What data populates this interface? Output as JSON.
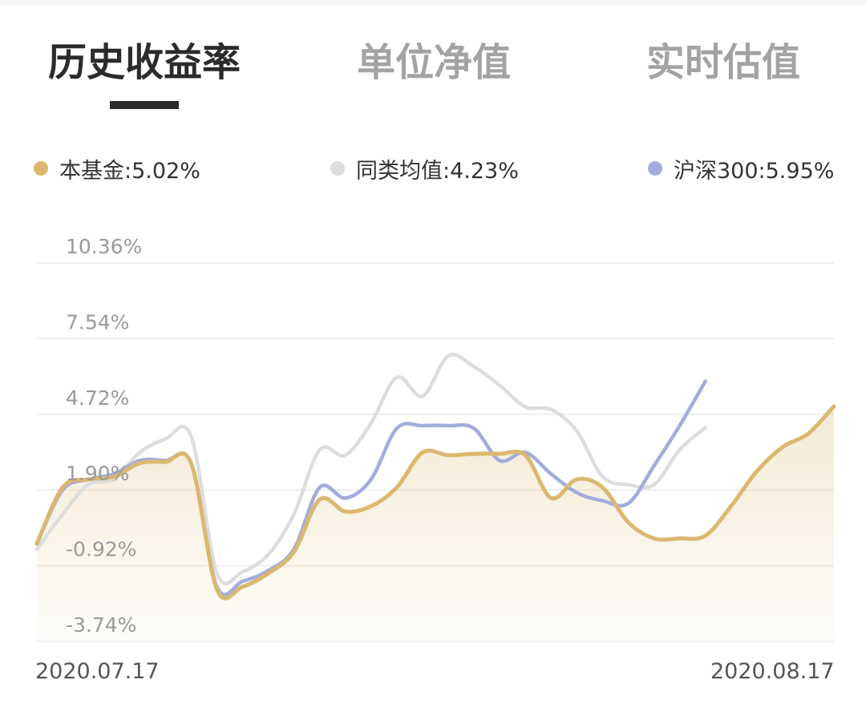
{
  "tabs": [
    {
      "label": "历史收益率",
      "active": true
    },
    {
      "label": "单位净值",
      "active": false
    },
    {
      "label": "实时估值",
      "active": false
    }
  ],
  "legend": [
    {
      "label": "本基金:5.02%",
      "color": "#dcb86f"
    },
    {
      "label": "同类均值:4.23%",
      "color": "#dddddd"
    },
    {
      "label": "沪深300:5.95%",
      "color": "#a2acdc"
    }
  ],
  "chart_data": {
    "type": "line",
    "y_tick_labels": [
      "10.36%",
      "7.54%",
      "4.72%",
      "1.90%",
      "-0.92%",
      "-3.74%"
    ],
    "y_ticks": [
      10.36,
      7.54,
      4.72,
      1.9,
      -0.92,
      -3.74
    ],
    "ylim": [
      -3.74,
      10.36
    ],
    "x_start_label": "2020.07.17",
    "x_end_label": "2020.08.17",
    "area_fill_series": "本基金",
    "series": [
      {
        "name": "本基金",
        "color": "#dcb86f",
        "x": [
          "2020.07.17",
          "2020.07.18",
          "2020.07.19",
          "2020.07.20",
          "2020.07.21",
          "2020.07.22",
          "2020.07.23",
          "2020.07.24",
          "2020.07.25",
          "2020.07.26",
          "2020.07.27",
          "2020.07.28",
          "2020.07.29",
          "2020.07.30",
          "2020.07.31",
          "2020.08.01",
          "2020.08.02",
          "2020.08.03",
          "2020.08.04",
          "2020.08.05",
          "2020.08.06",
          "2020.08.07",
          "2020.08.08",
          "2020.08.09",
          "2020.08.10",
          "2020.08.11",
          "2020.08.12",
          "2020.08.13",
          "2020.08.14",
          "2020.08.15",
          "2020.08.16",
          "2020.08.17"
        ],
        "values": [
          -0.1,
          2.0,
          2.3,
          2.4,
          2.9,
          2.95,
          2.9,
          -1.8,
          -1.7,
          -1.2,
          -0.4,
          1.55,
          1.1,
          1.3,
          2.0,
          3.3,
          3.2,
          3.25,
          3.25,
          3.2,
          1.6,
          2.3,
          2.0,
          0.7,
          0.1,
          0.1,
          0.2,
          1.3,
          2.6,
          3.5,
          4.0,
          5.02
        ]
      },
      {
        "name": "同类均值",
        "color": "#dddddd",
        "x": [
          "2020.07.17",
          "2020.07.18",
          "2020.07.19",
          "2020.07.20",
          "2020.07.21",
          "2020.07.22",
          "2020.07.23",
          "2020.07.24",
          "2020.07.25",
          "2020.07.26",
          "2020.07.27",
          "2020.07.28",
          "2020.07.29",
          "2020.07.30",
          "2020.07.31",
          "2020.08.01",
          "2020.08.02",
          "2020.08.03",
          "2020.08.04",
          "2020.08.05",
          "2020.08.06",
          "2020.08.07",
          "2020.08.08",
          "2020.08.09",
          "2020.08.10",
          "2020.08.11",
          "2020.08.12",
          "2020.08.13",
          "2020.08.14",
          "2020.08.15",
          "2020.08.16",
          "2020.08.17"
        ],
        "values": [
          -0.3,
          1.0,
          2.1,
          2.3,
          3.3,
          3.8,
          3.9,
          -1.2,
          -1.15,
          -0.5,
          1.0,
          3.4,
          3.2,
          4.4,
          6.1,
          5.4,
          6.9,
          6.5,
          5.8,
          5.0,
          4.9,
          4.1,
          2.4,
          2.1,
          2.1,
          3.4,
          4.23,
          null,
          null,
          null,
          null,
          null
        ]
      },
      {
        "name": "沪深300",
        "color": "#a2acdc",
        "x": [
          "2020.07.17",
          "2020.07.18",
          "2020.07.19",
          "2020.07.20",
          "2020.07.21",
          "2020.07.22",
          "2020.07.23",
          "2020.07.24",
          "2020.07.25",
          "2020.07.26",
          "2020.07.27",
          "2020.07.28",
          "2020.07.29",
          "2020.07.30",
          "2020.07.31",
          "2020.08.01",
          "2020.08.02",
          "2020.08.03",
          "2020.08.04",
          "2020.08.05",
          "2020.08.06",
          "2020.08.07",
          "2020.08.08",
          "2020.08.09",
          "2020.08.10",
          "2020.08.11",
          "2020.08.12",
          "2020.08.13",
          "2020.08.14",
          "2020.08.15",
          "2020.08.16",
          "2020.08.17"
        ],
        "values": [
          -0.1,
          1.9,
          2.3,
          2.5,
          3.0,
          3.0,
          2.9,
          -1.7,
          -1.5,
          -1.1,
          -0.3,
          2.0,
          1.6,
          2.3,
          4.2,
          4.3,
          4.3,
          4.2,
          3.0,
          3.3,
          2.5,
          1.8,
          1.5,
          1.4,
          2.8,
          4.3,
          5.95,
          null,
          null,
          null,
          null,
          null
        ]
      }
    ]
  }
}
